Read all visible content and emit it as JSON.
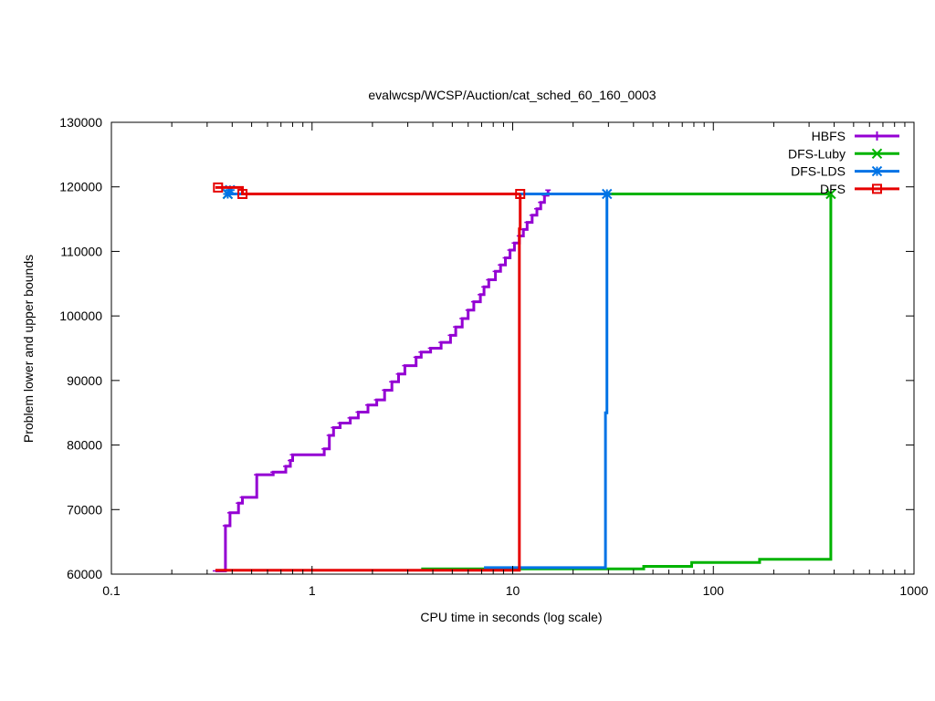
{
  "chart_data": {
    "type": "line",
    "title": "evalwcsp/WCSP/Auction/cat_sched_60_160_0003",
    "xlabel": "CPU time in seconds (log scale)",
    "ylabel": "Problem lower and upper bounds",
    "xscale": "log",
    "xlim": [
      0.1,
      1000
    ],
    "ylim": [
      60000,
      130000
    ],
    "x_ticks": [
      0.1,
      1,
      10,
      100,
      1000
    ],
    "x_tick_labels": [
      "0.1",
      "1",
      "10",
      "100",
      "1000"
    ],
    "y_ticks": [
      60000,
      70000,
      80000,
      90000,
      100000,
      110000,
      120000,
      130000
    ],
    "y_tick_labels": [
      "60000",
      "70000",
      "80000",
      "90000",
      "100000",
      "110000",
      "120000",
      "130000"
    ],
    "legend_position": "top-right",
    "grid": false,
    "series": [
      {
        "name": "HBFS",
        "color": "#9400d3",
        "marker": "plus",
        "lower_bound": [
          [
            0.33,
            60500
          ],
          [
            0.37,
            60500
          ],
          [
            0.37,
            67500
          ],
          [
            0.39,
            67500
          ],
          [
            0.39,
            69500
          ],
          [
            0.43,
            69500
          ],
          [
            0.43,
            71000
          ],
          [
            0.45,
            71000
          ],
          [
            0.45,
            71900
          ],
          [
            0.53,
            71900
          ],
          [
            0.53,
            75400
          ],
          [
            0.64,
            75400
          ],
          [
            0.64,
            75800
          ],
          [
            0.74,
            75800
          ],
          [
            0.74,
            76700
          ],
          [
            0.78,
            76700
          ],
          [
            0.78,
            77600
          ],
          [
            0.8,
            77600
          ],
          [
            0.8,
            78500
          ],
          [
            1.15,
            78500
          ],
          [
            1.15,
            79400
          ],
          [
            1.22,
            79400
          ],
          [
            1.22,
            81500
          ],
          [
            1.28,
            81500
          ],
          [
            1.28,
            82700
          ],
          [
            1.38,
            82700
          ],
          [
            1.38,
            83400
          ],
          [
            1.55,
            83400
          ],
          [
            1.55,
            84200
          ],
          [
            1.7,
            84200
          ],
          [
            1.7,
            85100
          ],
          [
            1.9,
            85100
          ],
          [
            1.9,
            86200
          ],
          [
            2.1,
            86200
          ],
          [
            2.1,
            87000
          ],
          [
            2.3,
            87000
          ],
          [
            2.3,
            88500
          ],
          [
            2.5,
            88500
          ],
          [
            2.5,
            89800
          ],
          [
            2.7,
            89800
          ],
          [
            2.7,
            91000
          ],
          [
            2.9,
            91000
          ],
          [
            2.9,
            92300
          ],
          [
            3.3,
            92300
          ],
          [
            3.3,
            93600
          ],
          [
            3.5,
            93600
          ],
          [
            3.5,
            94400
          ],
          [
            3.9,
            94400
          ],
          [
            3.9,
            95000
          ],
          [
            4.4,
            95000
          ],
          [
            4.4,
            95900
          ],
          [
            4.9,
            95900
          ],
          [
            4.9,
            97000
          ],
          [
            5.2,
            97000
          ],
          [
            5.2,
            98300
          ],
          [
            5.6,
            98300
          ],
          [
            5.6,
            99600
          ],
          [
            6.0,
            99600
          ],
          [
            6.0,
            100900
          ],
          [
            6.4,
            100900
          ],
          [
            6.4,
            102200
          ],
          [
            6.9,
            102200
          ],
          [
            6.9,
            103300
          ],
          [
            7.2,
            103300
          ],
          [
            7.2,
            104500
          ],
          [
            7.6,
            104500
          ],
          [
            7.6,
            105600
          ],
          [
            8.2,
            105600
          ],
          [
            8.2,
            106900
          ],
          [
            8.7,
            106900
          ],
          [
            8.7,
            107900
          ],
          [
            9.2,
            107900
          ],
          [
            9.2,
            109000
          ],
          [
            9.7,
            109000
          ],
          [
            9.7,
            110200
          ],
          [
            10.2,
            110200
          ],
          [
            10.2,
            111300
          ],
          [
            10.8,
            111300
          ],
          [
            10.8,
            112400
          ],
          [
            11.3,
            112400
          ],
          [
            11.3,
            113400
          ],
          [
            11.8,
            113400
          ],
          [
            11.8,
            114500
          ],
          [
            12.5,
            114500
          ],
          [
            12.5,
            115600
          ],
          [
            13.2,
            115600
          ],
          [
            13.2,
            116600
          ],
          [
            13.8,
            116600
          ],
          [
            13.8,
            117600
          ],
          [
            14.4,
            117600
          ],
          [
            14.4,
            118700
          ],
          [
            15.0,
            118700
          ],
          [
            15.0,
            119500
          ]
        ]
      },
      {
        "name": "DFS-Luby",
        "color": "#00b300",
        "marker": "x",
        "lower_bound": [
          [
            3.5,
            60800
          ],
          [
            29,
            60800
          ],
          [
            45,
            60800
          ],
          [
            45,
            61200
          ],
          [
            78,
            61200
          ],
          [
            78,
            61800
          ],
          [
            170,
            61800
          ],
          [
            170,
            62300
          ],
          [
            385,
            62300
          ],
          [
            385,
            118900
          ]
        ],
        "upper_bound": [
          [
            0.38,
            118900
          ],
          [
            385,
            118900
          ]
        ],
        "markers": [
          [
            0.38,
            118900
          ],
          [
            385,
            118900
          ]
        ]
      },
      {
        "name": "DFS-LDS",
        "color": "#0073e6",
        "marker": "star",
        "lower_bound": [
          [
            7.2,
            61000
          ],
          [
            29,
            61000
          ],
          [
            29,
            85000
          ],
          [
            29.5,
            85000
          ],
          [
            29.5,
            118900
          ]
        ],
        "upper_bound": [
          [
            0.38,
            118900
          ],
          [
            29.5,
            118900
          ]
        ],
        "markers": [
          [
            0.38,
            118900
          ],
          [
            0.39,
            119500
          ],
          [
            29.5,
            118900
          ]
        ]
      },
      {
        "name": "DFS",
        "color": "#e60000",
        "marker": "square",
        "lower_bound": [
          [
            0.33,
            60600
          ],
          [
            10.8,
            60600
          ],
          [
            10.8,
            113500
          ],
          [
            10.9,
            113500
          ],
          [
            10.9,
            118900
          ]
        ],
        "upper_bound": [
          [
            0.33,
            119900
          ],
          [
            0.45,
            119900
          ],
          [
            0.45,
            118900
          ],
          [
            10.9,
            118900
          ]
        ],
        "markers": [
          [
            0.34,
            119900
          ],
          [
            0.45,
            118900
          ],
          [
            10.9,
            118900
          ]
        ]
      }
    ]
  }
}
